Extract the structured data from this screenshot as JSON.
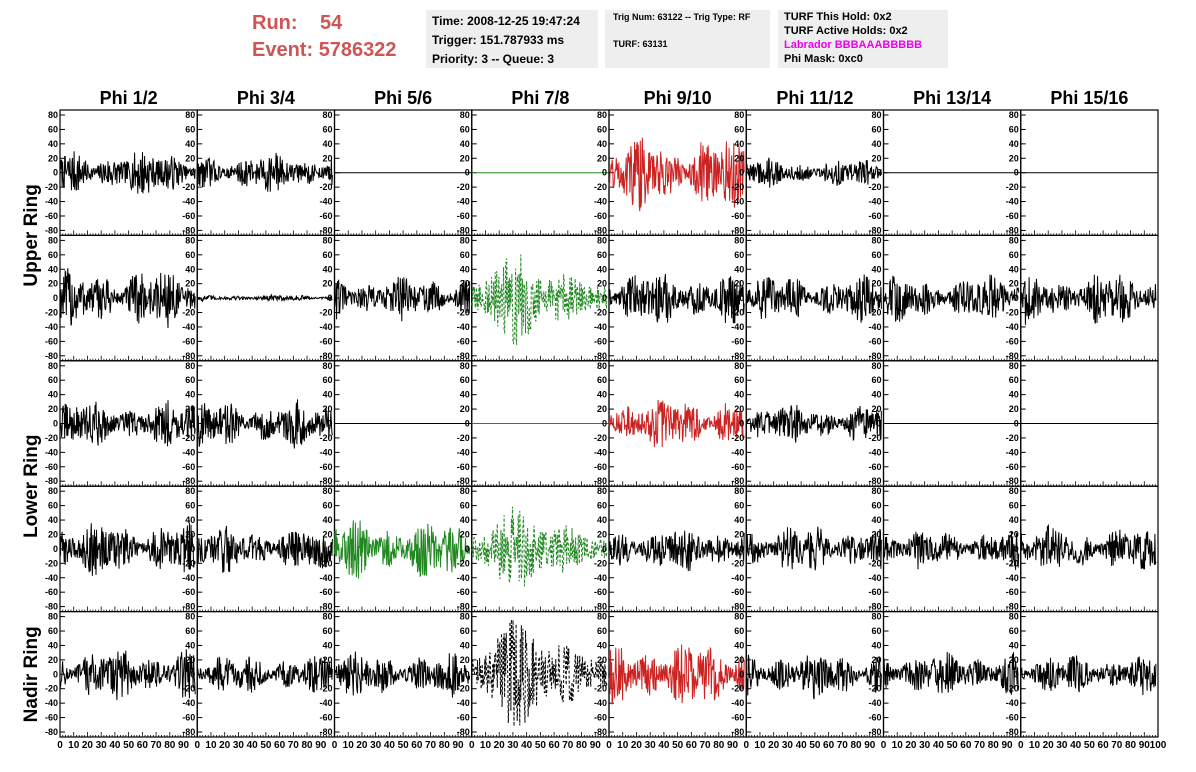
{
  "header": {
    "run_label": "Run:",
    "run_value": "54",
    "event_label": "Event:",
    "event_value": "5786322",
    "time": "Time: 2008-12-25 19:47:24",
    "trigger": "Trigger: 151.787933 ms",
    "priority": "Priority: 3 -- Queue: 3",
    "trig_num": "Trig Num: 63122 -- Trig Type: RF",
    "turf": "TURF: 63131",
    "turf_this_hold": "TURF This Hold: 0x2",
    "turf_active_holds": "TURF Active Holds: 0x2",
    "labrador": "Labrador BBBAAABBBBB",
    "phi_mask": "Phi Mask: 0xc0"
  },
  "colors": {
    "header_red": "#cc5555",
    "labrador_magenta": "#ee00ee",
    "trace_black": "#000000",
    "trace_red": "#cc2222",
    "trace_green": "#228822",
    "box_gray": "#eeeeee"
  },
  "chart_data": {
    "type": "line",
    "columns": [
      "Phi 1/2",
      "Phi 3/4",
      "Phi 5/6",
      "Phi 7/8",
      "Phi 9/10",
      "Phi 11/12",
      "Phi 13/14",
      "Phi 15/16"
    ],
    "ring_labels": [
      {
        "label": "Upper Ring",
        "rows": [
          0,
          1
        ]
      },
      {
        "label": "Lower Ring",
        "rows": [
          2,
          3
        ]
      },
      {
        "label": "Nadir Ring",
        "rows": [
          4
        ]
      }
    ],
    "xlim": [
      0,
      100
    ],
    "ylim": [
      -80,
      80
    ],
    "x_ticks": [
      0,
      10,
      20,
      30,
      40,
      50,
      60,
      70,
      80,
      90,
      100
    ],
    "y_ticks": [
      -80,
      -60,
      -40,
      -20,
      0,
      20,
      40,
      60,
      80
    ],
    "grid": false,
    "panels": [
      [
        {
          "color": "black",
          "style": "solid",
          "amplitude": 35
        },
        {
          "color": "black",
          "style": "solid",
          "amplitude": 30
        },
        {
          "color": "black",
          "style": "flat",
          "amplitude": 0
        },
        {
          "color": "green",
          "style": "flat",
          "amplitude": 0
        },
        {
          "color": "red",
          "style": "solid",
          "amplitude": 55
        },
        {
          "color": "black",
          "style": "solid",
          "amplitude": 22
        },
        {
          "color": "black",
          "style": "flat",
          "amplitude": 0
        },
        {
          "color": "black",
          "style": "flat",
          "amplitude": 0
        }
      ],
      [
        {
          "color": "black",
          "style": "solid",
          "amplitude": 45
        },
        {
          "color": "black",
          "style": "solid",
          "amplitude": 5
        },
        {
          "color": "black",
          "style": "solid",
          "amplitude": 35
        },
        {
          "color": "green",
          "style": "dashed",
          "amplitude": 65
        },
        {
          "color": "black",
          "style": "solid",
          "amplitude": 40
        },
        {
          "color": "black",
          "style": "solid",
          "amplitude": 35
        },
        {
          "color": "black",
          "style": "solid",
          "amplitude": 35
        },
        {
          "color": "black",
          "style": "solid",
          "amplitude": 40
        }
      ],
      [
        {
          "color": "black",
          "style": "solid",
          "amplitude": 35
        },
        {
          "color": "black",
          "style": "solid",
          "amplitude": 35
        },
        {
          "color": "black",
          "style": "flat",
          "amplitude": 0
        },
        {
          "color": "green",
          "style": "flat",
          "amplitude": 0
        },
        {
          "color": "red",
          "style": "solid",
          "amplitude": 40
        },
        {
          "color": "black",
          "style": "solid",
          "amplitude": 30
        },
        {
          "color": "black",
          "style": "flat",
          "amplitude": 0
        },
        {
          "color": "black",
          "style": "flat",
          "amplitude": 0
        }
      ],
      [
        {
          "color": "black",
          "style": "solid",
          "amplitude": 40
        },
        {
          "color": "black",
          "style": "solid",
          "amplitude": 35
        },
        {
          "color": "green",
          "style": "solid",
          "amplitude": 45
        },
        {
          "color": "green",
          "style": "dashed",
          "amplitude": 60
        },
        {
          "color": "black",
          "style": "solid",
          "amplitude": 35
        },
        {
          "color": "black",
          "style": "solid",
          "amplitude": 35
        },
        {
          "color": "black",
          "style": "solid",
          "amplitude": 30
        },
        {
          "color": "black",
          "style": "solid",
          "amplitude": 35
        }
      ],
      [
        {
          "color": "black",
          "style": "solid",
          "amplitude": 40
        },
        {
          "color": "black",
          "style": "solid",
          "amplitude": 30
        },
        {
          "color": "black",
          "style": "solid",
          "amplitude": 35
        },
        {
          "color": "black",
          "style": "dashed",
          "amplitude": 80
        },
        {
          "color": "red",
          "style": "solid",
          "amplitude": 50
        },
        {
          "color": "black",
          "style": "solid",
          "amplitude": 35
        },
        {
          "color": "black",
          "style": "solid",
          "amplitude": 35
        },
        {
          "color": "black",
          "style": "solid",
          "amplitude": 30
        }
      ]
    ]
  }
}
